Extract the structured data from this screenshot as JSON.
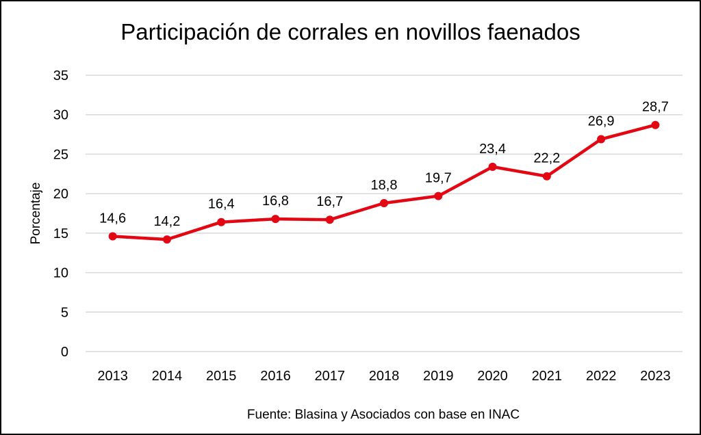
{
  "chart_data": {
    "type": "line",
    "title": "Participación de corrales en novillos faenados",
    "xlabel": "",
    "ylabel": "Porcentaje",
    "categories": [
      "2013",
      "2014",
      "2015",
      "2016",
      "2017",
      "2018",
      "2019",
      "2020",
      "2021",
      "2022",
      "2023"
    ],
    "series": [
      {
        "name": "Participación",
        "values": [
          14.6,
          14.2,
          16.4,
          16.8,
          16.7,
          18.8,
          19.7,
          23.4,
          22.2,
          26.9,
          28.7
        ],
        "labels": [
          "14,6",
          "14,2",
          "16,4",
          "16,8",
          "16,7",
          "18,8",
          "19,7",
          "23,4",
          "22,2",
          "26,9",
          "28,7"
        ],
        "color": "#e30613"
      }
    ],
    "ylim": [
      0,
      35
    ],
    "yticks": [
      "0",
      "5",
      "10",
      "15",
      "20",
      "25",
      "30",
      "35"
    ],
    "grid": true,
    "legend": "none",
    "source": "Fuente: Blasina y Asociados con base en INAC"
  }
}
